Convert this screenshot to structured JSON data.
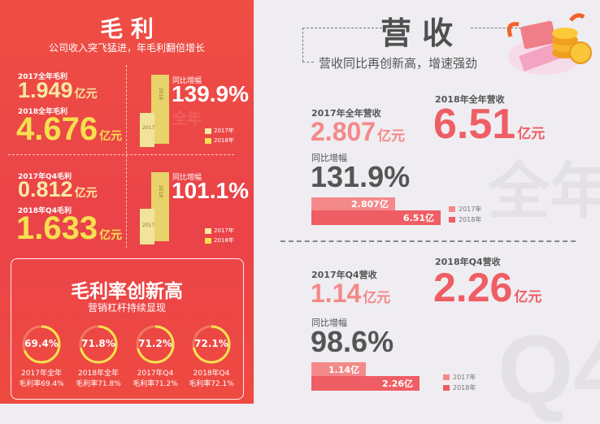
{
  "gross_profit": {
    "title": "毛 利",
    "subtitle": "公司收入突飞猛进，年毛利翻倍增长",
    "annual": {
      "label_2017": "2017全年毛利",
      "value_2017": "1.949",
      "label_2018": "2018全年毛利",
      "value_2018": "4.676",
      "unit": "亿元",
      "growth_label": "同比增幅",
      "growth": "139.9%",
      "watermark": "全年",
      "bar_labels": [
        "2018",
        "2017"
      ]
    },
    "q4": {
      "label_2017": "2017年Q4毛利",
      "value_2017": "0.812",
      "label_2018": "2018年Q4毛利",
      "value_2018": "1.633",
      "unit": "亿元",
      "growth_label": "同比增幅",
      "growth": "101.1%",
      "bar_labels": [
        "2018",
        "2017"
      ]
    },
    "legend": [
      "2017年",
      "2018年"
    ]
  },
  "margin": {
    "title": "毛利率创新高",
    "subtitle": "营销杠杆持续显现",
    "items": [
      {
        "value": "69.4%",
        "pct": 69.4,
        "line1": "2017年全年",
        "line2": "毛利率69.4%"
      },
      {
        "value": "71.8%",
        "pct": 71.8,
        "line1": "2018年全年",
        "line2": "毛利率71.8%"
      },
      {
        "value": "71.2%",
        "pct": 71.2,
        "line1": "2017年Q4",
        "line2": "毛利率71.2%"
      },
      {
        "value": "72.1%",
        "pct": 72.1,
        "line1": "2018年Q4",
        "line2": "毛利率72.1%"
      }
    ]
  },
  "revenue": {
    "title": "营 收",
    "subtitle": "营收同比再创新高，增速强劲",
    "annual": {
      "label_2017": "2017年全年营收",
      "value_2017": "2.807",
      "label_2018": "2018年全年营收",
      "value_2018": "6.51",
      "unit": "亿元",
      "growth_label": "同比增幅",
      "growth": "131.9%",
      "bar_2017": "2.807亿",
      "bar_2018": "6.51亿",
      "bar_values": [
        2.807,
        6.51
      ],
      "watermark": "全年"
    },
    "q4": {
      "label_2017": "2017年Q4营收",
      "value_2017": "1.14",
      "label_2018": "2018年Q4营收",
      "value_2018": "2.26",
      "unit": "亿元",
      "growth_label": "同比增幅",
      "growth": "98.6%",
      "bar_2017": "1.14亿",
      "bar_2018": "2.26亿",
      "bar_values": [
        1.14,
        2.26
      ],
      "watermark": "Q4"
    },
    "legend": [
      "2017年",
      "2018年"
    ]
  },
  "colors": {
    "red_bg": "#ec4646",
    "yellow": "#f6e050",
    "pale_yellow": "#f7e9a3",
    "pink": "#f4898a",
    "red": "#ee5e64",
    "gray_text": "#555555"
  }
}
